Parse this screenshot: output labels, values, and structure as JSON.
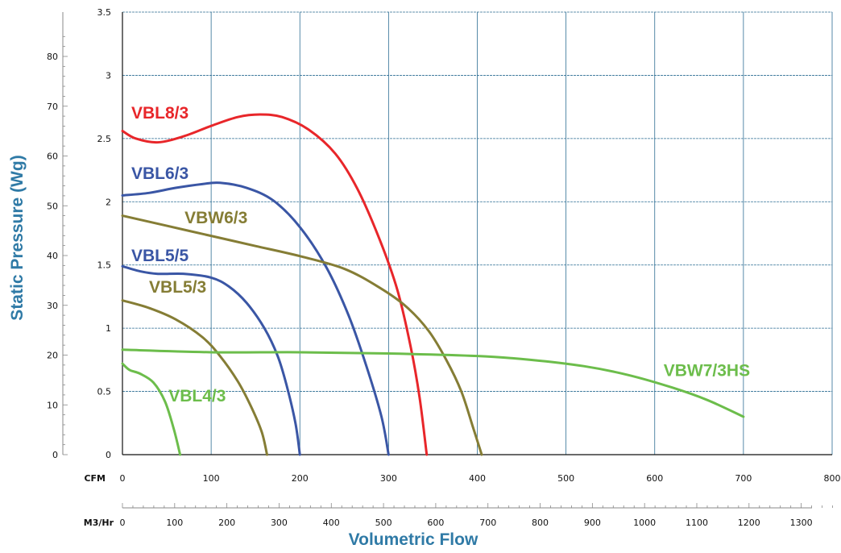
{
  "chart_data": {
    "type": "line",
    "xlabel": "Volumetric Flow",
    "ylabel": "Static Pressure (Wg)",
    "x_unit_primary": "CFM",
    "x_unit_secondary": "M3/Hr",
    "xlim": [
      0,
      800
    ],
    "ylim": [
      0,
      3.5
    ],
    "x_ticks": [
      "0",
      "100",
      "200",
      "300",
      "400",
      "500",
      "600",
      "700",
      "800"
    ],
    "y_ticks": [
      "0",
      "0.5",
      "1",
      "1.5",
      "2",
      "2.5",
      "3",
      "3.5"
    ],
    "secondary_y_ticks": [
      "0",
      "10",
      "20",
      "30",
      "40",
      "50",
      "60",
      "70",
      "80"
    ],
    "secondary_x_ticks": [
      "0",
      "100",
      "200",
      "300",
      "400",
      "500",
      "600",
      "700",
      "800",
      "900",
      "1000",
      "1100",
      "1200",
      "1300"
    ],
    "grid": true,
    "series": [
      {
        "name": "VBL8/3",
        "color": "#e8262a",
        "points": [
          [
            0,
            2.56
          ],
          [
            15,
            2.5
          ],
          [
            40,
            2.47
          ],
          [
            70,
            2.52
          ],
          [
            100,
            2.6
          ],
          [
            130,
            2.67
          ],
          [
            155,
            2.69
          ],
          [
            180,
            2.67
          ],
          [
            210,
            2.57
          ],
          [
            240,
            2.38
          ],
          [
            265,
            2.1
          ],
          [
            290,
            1.7
          ],
          [
            310,
            1.3
          ],
          [
            325,
            0.85
          ],
          [
            335,
            0.45
          ],
          [
            343,
            0
          ]
        ]
      },
      {
        "name": "VBL6/3",
        "color": "#3a56a5",
        "points": [
          [
            0,
            2.05
          ],
          [
            30,
            2.07
          ],
          [
            60,
            2.11
          ],
          [
            90,
            2.14
          ],
          [
            110,
            2.15
          ],
          [
            140,
            2.11
          ],
          [
            170,
            2.01
          ],
          [
            200,
            1.8
          ],
          [
            230,
            1.48
          ],
          [
            255,
            1.1
          ],
          [
            275,
            0.7
          ],
          [
            292,
            0.3
          ],
          [
            300,
            0
          ]
        ]
      },
      {
        "name": "VBW6/3",
        "color": "#857d35",
        "points": [
          [
            0,
            1.89
          ],
          [
            50,
            1.81
          ],
          [
            100,
            1.73
          ],
          [
            150,
            1.65
          ],
          [
            200,
            1.57
          ],
          [
            250,
            1.47
          ],
          [
            290,
            1.32
          ],
          [
            320,
            1.17
          ],
          [
            345,
            0.98
          ],
          [
            365,
            0.75
          ],
          [
            382,
            0.5
          ],
          [
            395,
            0.22
          ],
          [
            405,
            0
          ]
        ]
      },
      {
        "name": "VBL5/5",
        "color": "#3a56a5",
        "points": [
          [
            0,
            1.49
          ],
          [
            20,
            1.45
          ],
          [
            40,
            1.43
          ],
          [
            70,
            1.43
          ],
          [
            100,
            1.4
          ],
          [
            120,
            1.33
          ],
          [
            140,
            1.2
          ],
          [
            160,
            1.0
          ],
          [
            175,
            0.78
          ],
          [
            185,
            0.55
          ],
          [
            195,
            0.25
          ],
          [
            200,
            0
          ]
        ]
      },
      {
        "name": "VBL5/3",
        "color": "#857d35",
        "points": [
          [
            0,
            1.22
          ],
          [
            30,
            1.16
          ],
          [
            60,
            1.07
          ],
          [
            90,
            0.93
          ],
          [
            110,
            0.78
          ],
          [
            130,
            0.58
          ],
          [
            145,
            0.38
          ],
          [
            157,
            0.18
          ],
          [
            163,
            0
          ]
        ]
      },
      {
        "name": "VBW7/3HS",
        "color": "#6cbd4b",
        "points": [
          [
            0,
            0.83
          ],
          [
            100,
            0.81
          ],
          [
            200,
            0.81
          ],
          [
            300,
            0.8
          ],
          [
            400,
            0.78
          ],
          [
            460,
            0.75
          ],
          [
            520,
            0.7
          ],
          [
            570,
            0.63
          ],
          [
            620,
            0.53
          ],
          [
            660,
            0.43
          ],
          [
            700,
            0.3
          ]
        ]
      },
      {
        "name": "VBL4/3",
        "color": "#6cbd4b",
        "points": [
          [
            0,
            0.72
          ],
          [
            8,
            0.67
          ],
          [
            20,
            0.64
          ],
          [
            35,
            0.57
          ],
          [
            48,
            0.42
          ],
          [
            58,
            0.2
          ],
          [
            65,
            0
          ]
        ]
      }
    ],
    "label_positions": [
      {
        "series": "VBL8/3",
        "x": 10,
        "y": 2.66
      },
      {
        "series": "VBL6/3",
        "x": 10,
        "y": 2.18
      },
      {
        "series": "VBW6/3",
        "x": 70,
        "y": 1.83
      },
      {
        "series": "VBL5/5",
        "x": 10,
        "y": 1.53
      },
      {
        "series": "VBL5/3",
        "x": 30,
        "y": 1.28
      },
      {
        "series": "VBW7/3HS",
        "x": 610,
        "y": 0.62
      },
      {
        "series": "VBL4/3",
        "x": 52,
        "y": 0.42
      }
    ]
  }
}
